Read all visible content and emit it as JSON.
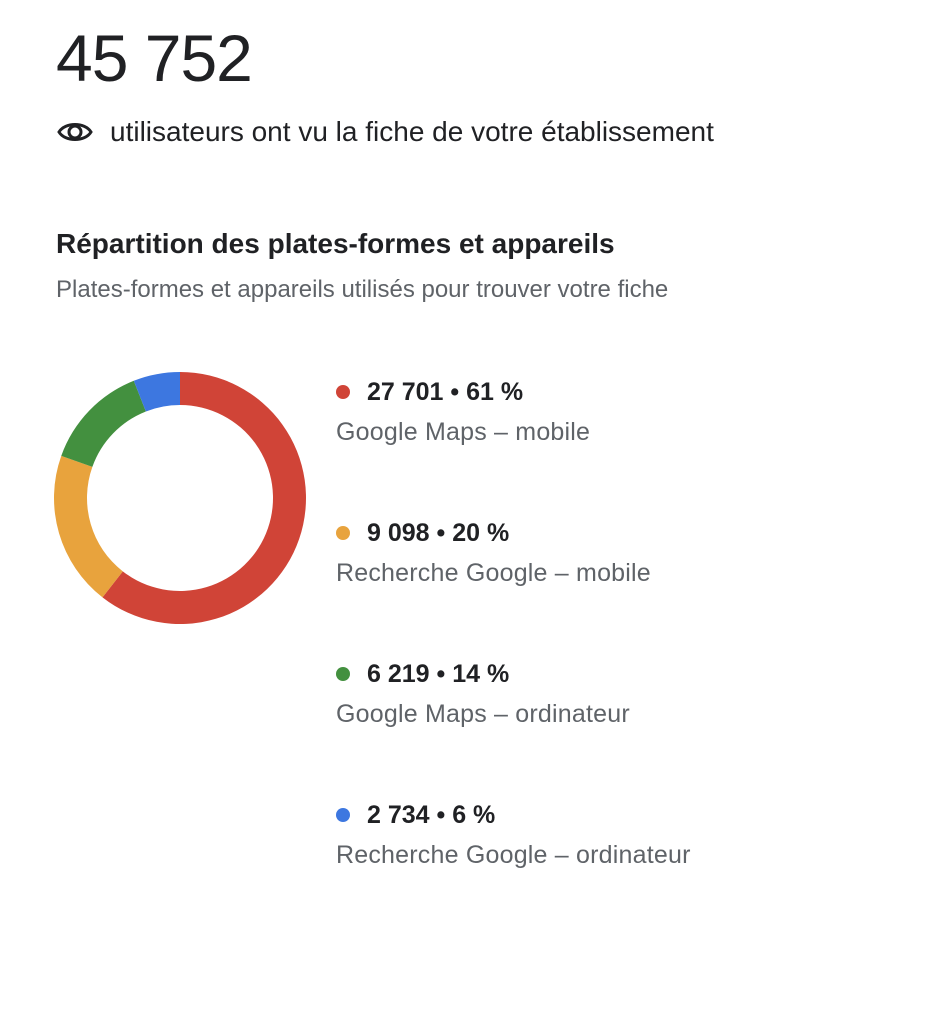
{
  "summary": {
    "total": "45 752",
    "caption": "utilisateurs ont vu la fiche de votre établissement",
    "icon": "eye-icon"
  },
  "section": {
    "title": "Répartition des plates-formes et appareils",
    "subtitle": "Plates-formes et appareils utilisés pour trouver votre fiche"
  },
  "legend": [
    {
      "value": "27 701 • 61 %",
      "label": "Google Maps – mobile"
    },
    {
      "value": "9 098 • 20 %",
      "label": "Recherche Google – mobile"
    },
    {
      "value": "6 219 • 14 %",
      "label": "Google Maps – ordinateur"
    },
    {
      "value": "2 734 • 6 %",
      "label": "Recherche Google – ordinateur"
    }
  ],
  "chart_data": {
    "type": "pie",
    "categories": [
      "Google Maps – mobile",
      "Recherche Google – mobile",
      "Google Maps – ordinateur",
      "Recherche Google – ordinateur"
    ],
    "values": [
      27701,
      9098,
      6219,
      2734
    ],
    "percentages": [
      61,
      20,
      14,
      6
    ],
    "colors": [
      "#d04437",
      "#e8a33d",
      "#43903f",
      "#3d77e0"
    ],
    "donut": true,
    "start": "top",
    "direction": "clockwise"
  }
}
